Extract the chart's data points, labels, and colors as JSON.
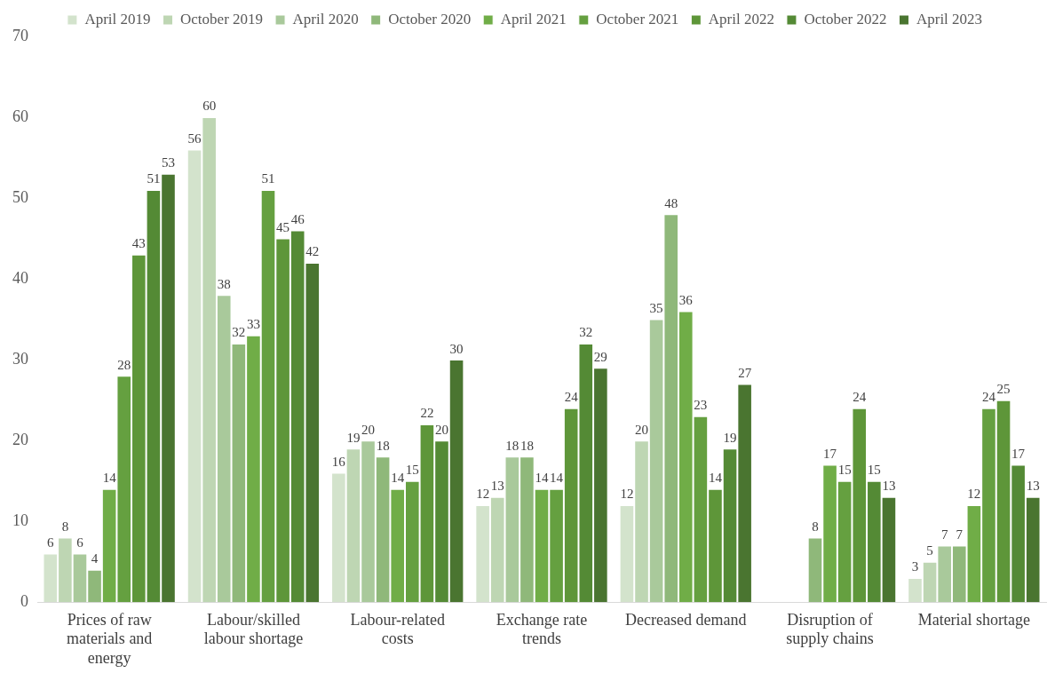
{
  "chart_data": {
    "type": "bar",
    "categories": [
      "Prices of raw materials and energy",
      "Labour/skilled labour shortage",
      "Labour-related costs",
      "Exchange rate trends",
      "Decreased demand",
      "Disruption of supply chains",
      "Material shortage"
    ],
    "series": [
      {
        "name": "April 2019",
        "color": "#d3e3cc",
        "values": [
          6,
          56,
          16,
          12,
          12,
          null,
          3
        ]
      },
      {
        "name": "October 2019",
        "color": "#bed6b3",
        "values": [
          8,
          60,
          19,
          13,
          20,
          null,
          5
        ]
      },
      {
        "name": "April 2020",
        "color": "#a9c99b",
        "values": [
          6,
          38,
          20,
          18,
          35,
          null,
          7
        ]
      },
      {
        "name": "October 2020",
        "color": "#8fb87a",
        "values": [
          4,
          32,
          18,
          18,
          48,
          8,
          7
        ]
      },
      {
        "name": "April 2021",
        "color": "#70ad47",
        "values": [
          14,
          33,
          14,
          14,
          36,
          17,
          12
        ]
      },
      {
        "name": "October 2021",
        "color": "#65a040",
        "values": [
          28,
          51,
          15,
          14,
          23,
          15,
          24
        ]
      },
      {
        "name": "April 2022",
        "color": "#5e9639",
        "values": [
          43,
          45,
          22,
          24,
          14,
          24,
          25
        ]
      },
      {
        "name": "October 2022",
        "color": "#548a35",
        "values": [
          51,
          46,
          20,
          32,
          19,
          15,
          17
        ]
      },
      {
        "name": "April 2023",
        "color": "#4a7530",
        "values": [
          53,
          42,
          30,
          29,
          27,
          13,
          13
        ]
      }
    ],
    "ylim": [
      0,
      70
    ],
    "yticks": [
      0,
      10,
      20,
      30,
      40,
      50,
      60,
      70
    ],
    "grid": false,
    "legend": "top",
    "data_labels": true
  }
}
